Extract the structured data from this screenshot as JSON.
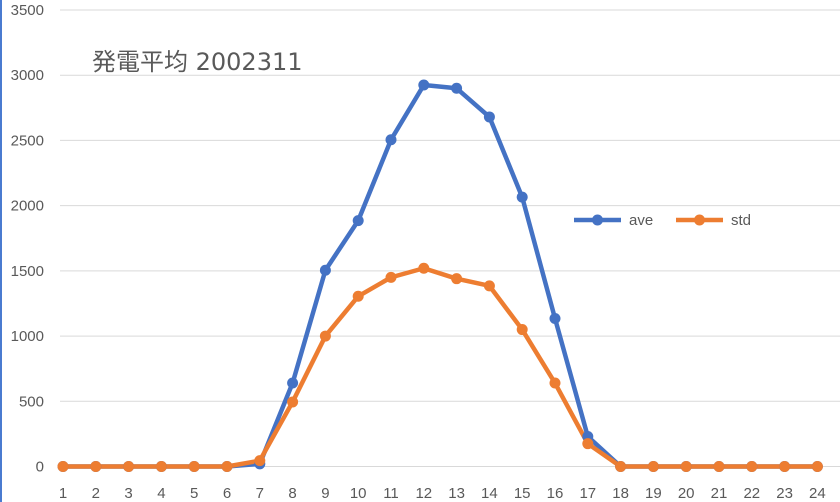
{
  "chart_data": {
    "type": "line",
    "title": "発電平均 2002311",
    "xlabel": "",
    "ylabel": "",
    "categories": [
      "1",
      "2",
      "3",
      "4",
      "5",
      "6",
      "7",
      "8",
      "9",
      "10",
      "11",
      "12",
      "13",
      "14",
      "15",
      "16",
      "17",
      "18",
      "19",
      "20",
      "21",
      "22",
      "23",
      "24"
    ],
    "ylim": [
      0,
      3500
    ],
    "yticks": [
      "0",
      "500",
      "1000",
      "1500",
      "2000",
      "2500",
      "3000",
      "3500"
    ],
    "grid": true,
    "legend_position": "right",
    "series": [
      {
        "name": "ave",
        "color": "#4472c4",
        "values": [
          0,
          0,
          0,
          0,
          0,
          0,
          20,
          640,
          1505,
          1885,
          2505,
          2925,
          2900,
          2680,
          2065,
          1135,
          230,
          0,
          0,
          0,
          0,
          0,
          0,
          0
        ]
      },
      {
        "name": "std",
        "color": "#ed7d31",
        "values": [
          0,
          0,
          0,
          0,
          0,
          0,
          45,
          495,
          1000,
          1305,
          1450,
          1520,
          1440,
          1385,
          1050,
          640,
          175,
          0,
          0,
          0,
          0,
          0,
          0,
          0
        ]
      }
    ]
  }
}
